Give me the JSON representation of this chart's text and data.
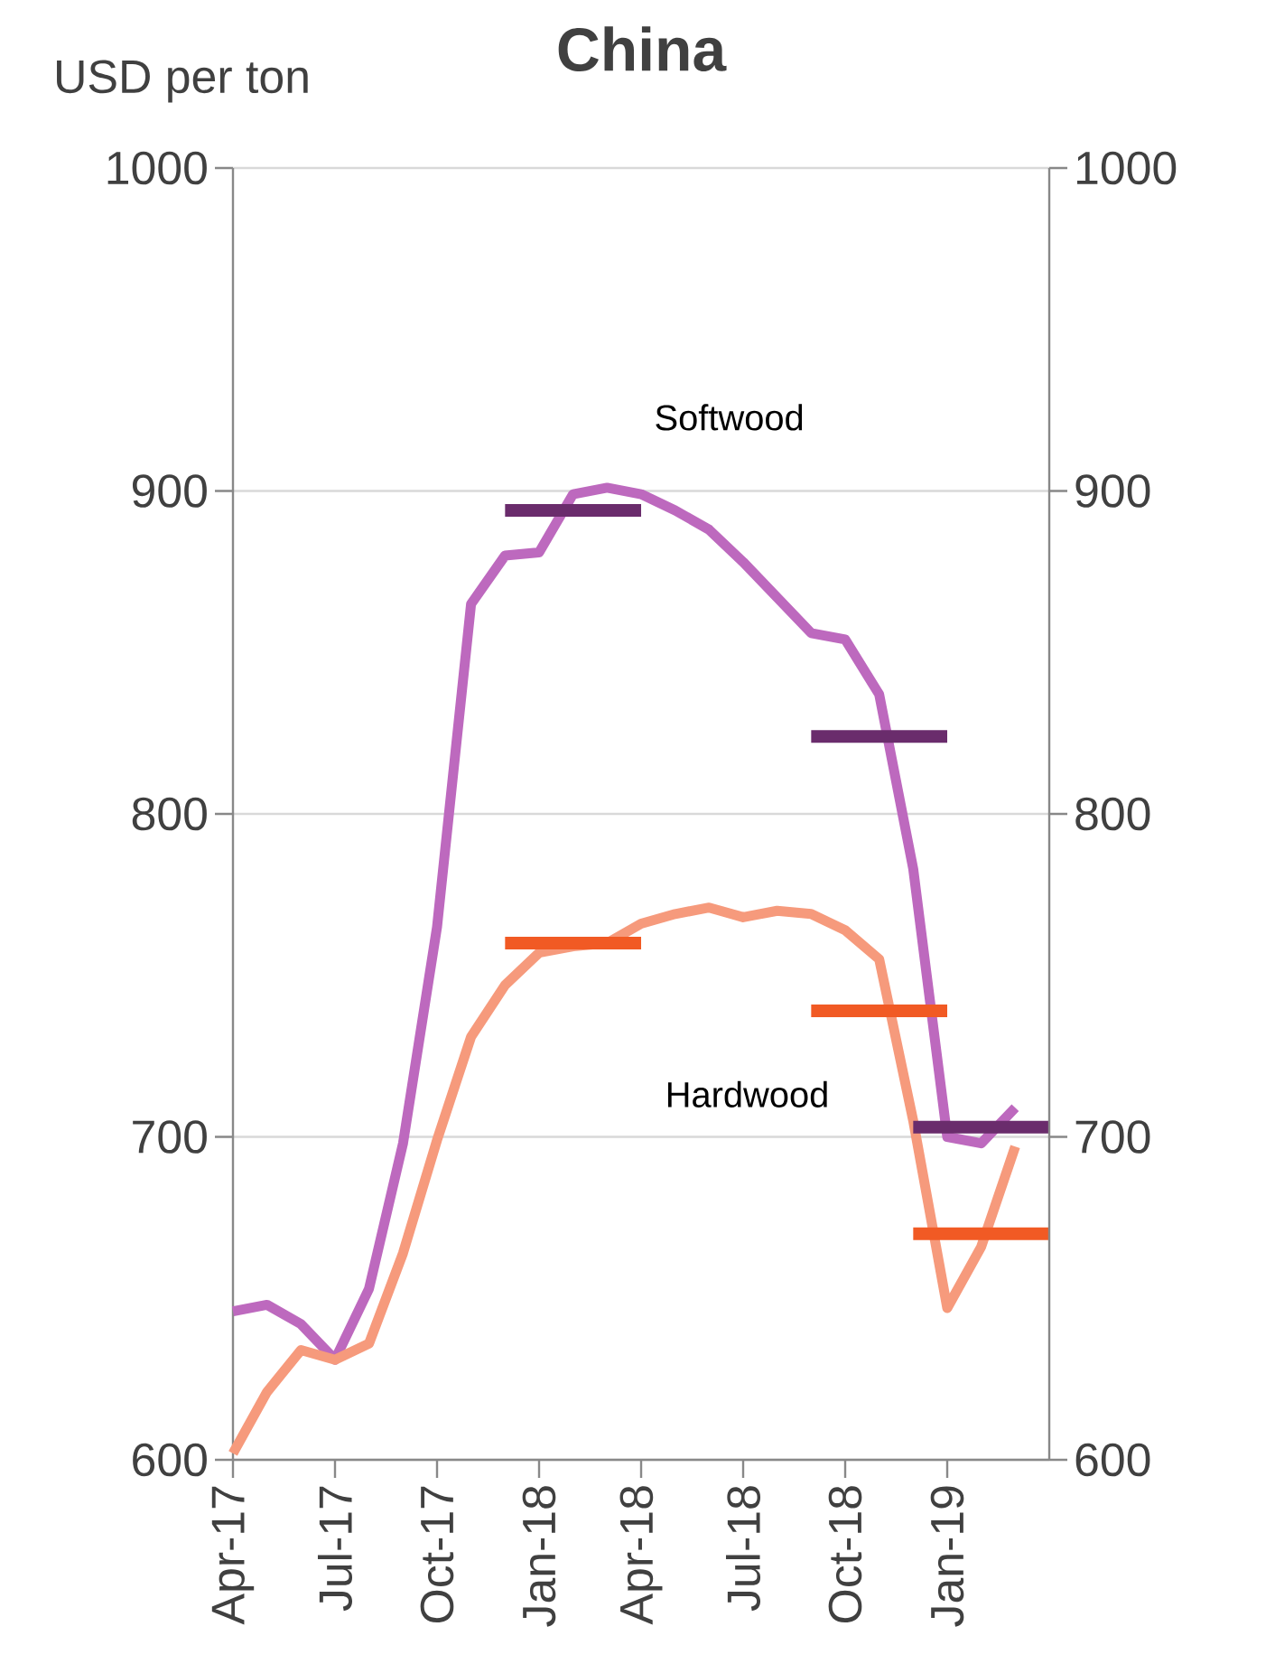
{
  "chart_data": {
    "type": "line",
    "title": "China",
    "ylabel": "USD per ton",
    "x": [
      "2017-04",
      "2017-05",
      "2017-06",
      "2017-07",
      "2017-08",
      "2017-09",
      "2017-10",
      "2017-11",
      "2017-12",
      "2018-01",
      "2018-02",
      "2018-03",
      "2018-04",
      "2018-05",
      "2018-06",
      "2018-07",
      "2018-08",
      "2018-09",
      "2018-10",
      "2018-11",
      "2018-12",
      "2019-01",
      "2019-02",
      "2019-03"
    ],
    "xlim": [
      "2017-04",
      "2019-04"
    ],
    "xticks": [
      {
        "value": "2017-04",
        "label": "Apr-17"
      },
      {
        "value": "2017-07",
        "label": "Jul-17"
      },
      {
        "value": "2017-10",
        "label": "Oct-17"
      },
      {
        "value": "2018-01",
        "label": "Jan-18"
      },
      {
        "value": "2018-04",
        "label": "Apr-18"
      },
      {
        "value": "2018-07",
        "label": "Jul-18"
      },
      {
        "value": "2018-10",
        "label": "Oct-18"
      },
      {
        "value": "2019-01",
        "label": "Jan-19"
      }
    ],
    "ylim": [
      600,
      1000
    ],
    "yticks": [
      600,
      700,
      800,
      900,
      1000
    ],
    "y2lim": [
      600,
      1000
    ],
    "y2ticks": [
      600,
      700,
      800,
      900,
      1000
    ],
    "grid": "y",
    "series": [
      {
        "name": "Softwood",
        "color": "#bd69be",
        "values": [
          646,
          648,
          642,
          631,
          653,
          698,
          765,
          865,
          880,
          881,
          899,
          901,
          899,
          894,
          888,
          878,
          867,
          856,
          854,
          837,
          783,
          700,
          698,
          709
        ]
      },
      {
        "name": "Hardwood",
        "color": "#f69a7c",
        "values": [
          602,
          621,
          634,
          631,
          636,
          664,
          699,
          731,
          747,
          757,
          759,
          760,
          766,
          769,
          771,
          768,
          770,
          769,
          764,
          755,
          705,
          647,
          666,
          697
        ]
      },
      {
        "color": "#6a2c6c",
        "x": [
          "2017-12",
          "2018-04"
        ],
        "values": [
          894,
          894
        ]
      },
      {
        "color": "#6a2c6c",
        "x": [
          "2018-09",
          "2019-01"
        ],
        "values": [
          824,
          824
        ]
      },
      {
        "color": "#6a2c6c",
        "x": [
          "2018-12",
          "2019-04"
        ],
        "values": [
          703,
          703
        ]
      },
      {
        "color": "#f15a24",
        "x": [
          "2017-12",
          "2018-04"
        ],
        "values": [
          760,
          760
        ]
      },
      {
        "color": "#f15a24",
        "x": [
          "2018-09",
          "2019-01"
        ],
        "values": [
          739,
          739
        ]
      },
      {
        "color": "#f15a24",
        "x": [
          "2018-12",
          "2019-04"
        ],
        "values": [
          670,
          670
        ]
      }
    ]
  }
}
